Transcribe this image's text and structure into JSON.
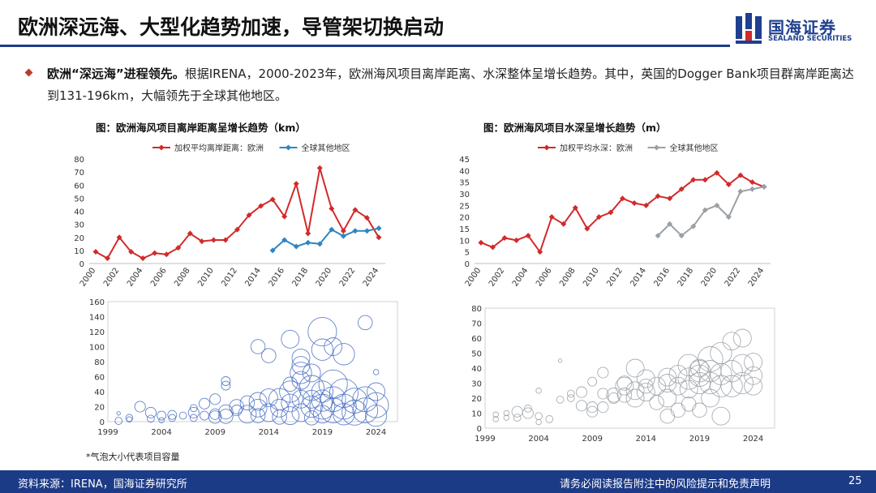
{
  "header": {
    "title": "欧洲深远海、大型化趋势加速，导管架切换启动",
    "logo_cn": "国海证券",
    "logo_en": "SEALAND SECURITIES"
  },
  "colors": {
    "brand": "#1c3b87",
    "red": "#d22a2a",
    "blue": "#2e86c1",
    "gray": "#9aa0a6",
    "bubble": "#4a6fc4",
    "bubble2": "#9aa0a6"
  },
  "paragraph": {
    "bold": "欧洲“深远海”进程领先。",
    "text": "根据IRENA，2000-2023年，欧洲海风项目离岸距离、水深整体呈增长趋势。其中，英国的Dogger Bank项目群离岸距离达到131-196km，大幅领先于全球其他地区。"
  },
  "chart_data": [
    {
      "type": "line",
      "title": "图：欧洲海风项目离岸距离呈增长趋势（km）",
      "x": [
        2000,
        2001,
        2002,
        2003,
        2004,
        2005,
        2006,
        2007,
        2008,
        2009,
        2010,
        2011,
        2012,
        2013,
        2014,
        2015,
        2016,
        2017,
        2018,
        2019,
        2020,
        2021,
        2022,
        2023,
        2024
      ],
      "x_ticks": [
        "2000",
        "2002",
        "2004",
        "2006",
        "2008",
        "2010",
        "2012",
        "2014",
        "2016",
        "2018",
        "2020",
        "2022",
        "2024"
      ],
      "y_ticks": [
        "0",
        "10",
        "20",
        "30",
        "40",
        "50",
        "60",
        "70",
        "80"
      ],
      "ylim": [
        0,
        80
      ],
      "series": [
        {
          "name": "加权平均离岸距离：欧洲",
          "color": "#d22a2a",
          "values": [
            9,
            4,
            20,
            9,
            4,
            8,
            7,
            12,
            23,
            17,
            18,
            18,
            26,
            37,
            44,
            49,
            36,
            61,
            23,
            73,
            42,
            25,
            41,
            35,
            20
          ]
        },
        {
          "name": "全球其他地区",
          "color": "#2e86c1",
          "values": [
            null,
            null,
            null,
            null,
            null,
            null,
            null,
            null,
            null,
            null,
            null,
            null,
            null,
            null,
            null,
            10,
            18,
            13,
            16,
            15,
            26,
            21,
            25,
            25,
            27
          ]
        }
      ]
    },
    {
      "type": "line",
      "title": "图：欧洲海风项目水深呈增长趋势（m）",
      "x": [
        2000,
        2001,
        2002,
        2003,
        2004,
        2005,
        2006,
        2007,
        2008,
        2009,
        2010,
        2011,
        2012,
        2013,
        2014,
        2015,
        2016,
        2017,
        2018,
        2019,
        2020,
        2021,
        2022,
        2023,
        2024
      ],
      "x_ticks": [
        "2000",
        "2002",
        "2004",
        "2006",
        "2008",
        "2010",
        "2012",
        "2014",
        "2016",
        "2018",
        "2020",
        "2022",
        "2024"
      ],
      "y_ticks": [
        "0",
        "5",
        "10",
        "15",
        "20",
        "25",
        "30",
        "35",
        "40",
        "45"
      ],
      "ylim": [
        0,
        45
      ],
      "series": [
        {
          "name": "加权平均水深：欧洲",
          "color": "#d22a2a",
          "values": [
            9,
            7,
            11,
            10,
            12,
            5,
            20,
            17,
            24,
            15,
            20,
            22,
            28,
            26,
            25,
            29,
            28,
            32,
            36,
            36,
            39,
            34,
            38,
            35,
            33
          ]
        },
        {
          "name": "全球其他地区",
          "color": "#9aa0a6",
          "values": [
            null,
            null,
            null,
            null,
            null,
            null,
            null,
            null,
            null,
            null,
            null,
            null,
            null,
            null,
            null,
            12,
            17,
            12,
            16,
            23,
            25,
            20,
            31,
            32,
            33
          ]
        }
      ]
    },
    {
      "type": "scatter",
      "bubble": true,
      "x_ticks": [
        "1999",
        "2004",
        "2009",
        "2014",
        "2019",
        "2024"
      ],
      "xlim": [
        1999,
        2026
      ],
      "y_ticks": [
        "0",
        "20",
        "40",
        "60",
        "80",
        "100",
        "120",
        "140",
        "160"
      ],
      "ylim": [
        0,
        160
      ],
      "points": [
        [
          2000,
          1,
          2
        ],
        [
          2000,
          11,
          1
        ],
        [
          2001,
          5,
          2
        ],
        [
          2001,
          3,
          1.5
        ],
        [
          2002,
          20,
          3
        ],
        [
          2003,
          12,
          3
        ],
        [
          2003,
          4,
          2
        ],
        [
          2004,
          8,
          2.5
        ],
        [
          2004,
          2,
          1.5
        ],
        [
          2005,
          5,
          2
        ],
        [
          2005,
          9,
          2.5
        ],
        [
          2006,
          8,
          2
        ],
        [
          2007,
          18,
          2
        ],
        [
          2007,
          12,
          3
        ],
        [
          2007,
          5,
          2
        ],
        [
          2008,
          24,
          3
        ],
        [
          2008,
          8,
          2.5
        ],
        [
          2009,
          30,
          3
        ],
        [
          2009,
          10,
          3
        ],
        [
          2009,
          6,
          3.5
        ],
        [
          2010,
          13,
          4
        ],
        [
          2010,
          7,
          4
        ],
        [
          2010,
          48,
          2.5
        ],
        [
          2010,
          54,
          2.5
        ],
        [
          2011,
          20,
          4
        ],
        [
          2011,
          15,
          3
        ],
        [
          2012,
          25,
          4
        ],
        [
          2012,
          10,
          5
        ],
        [
          2013,
          27,
          5
        ],
        [
          2013,
          18,
          5
        ],
        [
          2013,
          100,
          4
        ],
        [
          2013,
          8,
          4
        ],
        [
          2014,
          32,
          5
        ],
        [
          2014,
          88,
          4
        ],
        [
          2014,
          12,
          5
        ],
        [
          2015,
          30,
          6
        ],
        [
          2015,
          18,
          5
        ],
        [
          2015,
          6,
          4
        ],
        [
          2016,
          110,
          5
        ],
        [
          2016,
          40,
          6
        ],
        [
          2016,
          25,
          5
        ],
        [
          2016,
          8,
          5
        ],
        [
          2016,
          50,
          4
        ],
        [
          2017,
          65,
          6
        ],
        [
          2017,
          55,
          5
        ],
        [
          2017,
          85,
          5
        ],
        [
          2017,
          75,
          5
        ],
        [
          2017,
          12,
          5
        ],
        [
          2017,
          30,
          5
        ],
        [
          2018,
          45,
          7
        ],
        [
          2018,
          20,
          6
        ],
        [
          2018,
          65,
          5
        ],
        [
          2018,
          30,
          5
        ],
        [
          2018,
          5,
          4
        ],
        [
          2019,
          120,
          8
        ],
        [
          2019,
          96,
          6
        ],
        [
          2019,
          20,
          7
        ],
        [
          2019,
          40,
          6
        ],
        [
          2019,
          28,
          6
        ],
        [
          2019,
          10,
          5
        ],
        [
          2020,
          50,
          8
        ],
        [
          2020,
          100,
          5
        ],
        [
          2020,
          30,
          7
        ],
        [
          2020,
          15,
          7
        ],
        [
          2021,
          90,
          6
        ],
        [
          2021,
          38,
          8
        ],
        [
          2021,
          20,
          7
        ],
        [
          2021,
          10,
          6
        ],
        [
          2022,
          28,
          7
        ],
        [
          2022,
          12,
          7
        ],
        [
          2023,
          132,
          4
        ],
        [
          2023,
          30,
          7
        ],
        [
          2023,
          15,
          7
        ],
        [
          2024,
          66,
          1.5
        ],
        [
          2024,
          40,
          5
        ],
        [
          2024,
          22,
          7
        ],
        [
          2024,
          8,
          6
        ]
      ]
    },
    {
      "type": "scatter",
      "bubble": true,
      "x_ticks": [
        "1999",
        "2004",
        "2009",
        "2014",
        "2019",
        "2024"
      ],
      "xlim": [
        1999,
        2026
      ],
      "y_ticks": [
        "0",
        "10",
        "20",
        "30",
        "40",
        "50",
        "60",
        "70",
        "80"
      ],
      "ylim": [
        0,
        80
      ],
      "points": [
        [
          2000,
          9,
          1.5
        ],
        [
          2000,
          6,
          1.5
        ],
        [
          2001,
          10,
          1.5
        ],
        [
          2001,
          7,
          1.5
        ],
        [
          2002,
          11,
          3
        ],
        [
          2002,
          7,
          2
        ],
        [
          2003,
          10,
          3
        ],
        [
          2003,
          13,
          2
        ],
        [
          2004,
          8,
          2
        ],
        [
          2004,
          25,
          1.5
        ],
        [
          2004,
          4,
          1.5
        ],
        [
          2005,
          6,
          2
        ],
        [
          2006,
          19,
          2
        ],
        [
          2006,
          45,
          1
        ],
        [
          2007,
          20,
          2
        ],
        [
          2007,
          23,
          2
        ],
        [
          2008,
          24,
          3
        ],
        [
          2008,
          15,
          3
        ],
        [
          2009,
          14,
          3
        ],
        [
          2009,
          11,
          3
        ],
        [
          2009,
          31,
          2.5
        ],
        [
          2010,
          14,
          3
        ],
        [
          2010,
          23,
          3
        ],
        [
          2010,
          37,
          3
        ],
        [
          2011,
          20,
          3
        ],
        [
          2011,
          22,
          4
        ],
        [
          2012,
          28,
          5
        ],
        [
          2012,
          22,
          4
        ],
        [
          2012,
          30,
          4
        ],
        [
          2013,
          25,
          5
        ],
        [
          2013,
          20,
          5
        ],
        [
          2013,
          40,
          5
        ],
        [
          2014,
          24,
          5
        ],
        [
          2014,
          33,
          5
        ],
        [
          2014,
          28,
          4
        ],
        [
          2015,
          28,
          5
        ],
        [
          2015,
          17,
          4
        ],
        [
          2016,
          34,
          5
        ],
        [
          2016,
          20,
          5
        ],
        [
          2016,
          8,
          4
        ],
        [
          2016,
          30,
          5
        ],
        [
          2017,
          36,
          5
        ],
        [
          2017,
          28,
          5
        ],
        [
          2017,
          12,
          4
        ],
        [
          2018,
          42,
          6
        ],
        [
          2018,
          33,
          6
        ],
        [
          2018,
          16,
          4
        ],
        [
          2018,
          26,
          5
        ],
        [
          2019,
          38,
          6
        ],
        [
          2019,
          35,
          6
        ],
        [
          2019,
          30,
          6
        ],
        [
          2019,
          40,
          5
        ],
        [
          2019,
          12,
          4
        ],
        [
          2020,
          46,
          7
        ],
        [
          2020,
          38,
          6
        ],
        [
          2020,
          30,
          6
        ],
        [
          2020,
          20,
          5
        ],
        [
          2021,
          50,
          6
        ],
        [
          2021,
          36,
          6
        ],
        [
          2021,
          28,
          6
        ],
        [
          2021,
          8,
          5
        ],
        [
          2022,
          58,
          5
        ],
        [
          2022,
          38,
          6
        ],
        [
          2022,
          28,
          6
        ],
        [
          2023,
          60,
          5
        ],
        [
          2023,
          42,
          6
        ],
        [
          2023,
          30,
          6
        ],
        [
          2024,
          44,
          5
        ],
        [
          2024,
          35,
          5
        ],
        [
          2024,
          28,
          5
        ]
      ]
    }
  ],
  "note": "*气泡大小代表项目容量",
  "footer": {
    "source": "资料来源：IRENA，国海证券研究所",
    "disclaimer": "请务必阅读报告附注中的风险提示和免责声明",
    "page": "25"
  }
}
